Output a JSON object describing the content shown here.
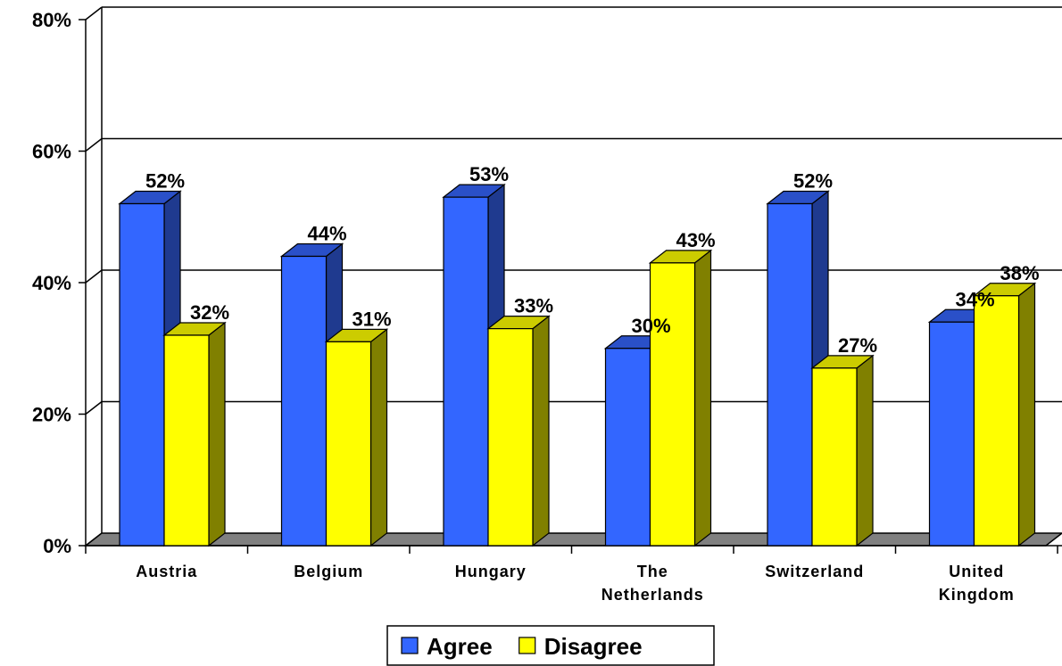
{
  "chart_data": {
    "type": "bar",
    "categories": [
      [
        "Austria"
      ],
      [
        "Belgium"
      ],
      [
        "Hungary"
      ],
      [
        "The",
        "Netherlands"
      ],
      [
        "Switzerland"
      ],
      [
        "United",
        "Kingdom"
      ]
    ],
    "series": [
      {
        "name": "Agree",
        "values": [
          52,
          44,
          53,
          30,
          52,
          34
        ],
        "color": "#3366FF",
        "side_color": "#1F3A8F",
        "top_color": "#2A50C8"
      },
      {
        "name": "Disagree",
        "values": [
          32,
          31,
          33,
          43,
          27,
          38
        ],
        "color": "#FFFF00",
        "side_color": "#808000",
        "top_color": "#CCCC00"
      }
    ],
    "value_suffix": "%",
    "yticks": [
      "0%",
      "20%",
      "40%",
      "60%",
      "80%"
    ],
    "ylim": [
      0,
      80
    ],
    "grid": true,
    "legend_position": "bottom",
    "floor_color": "#808080"
  }
}
